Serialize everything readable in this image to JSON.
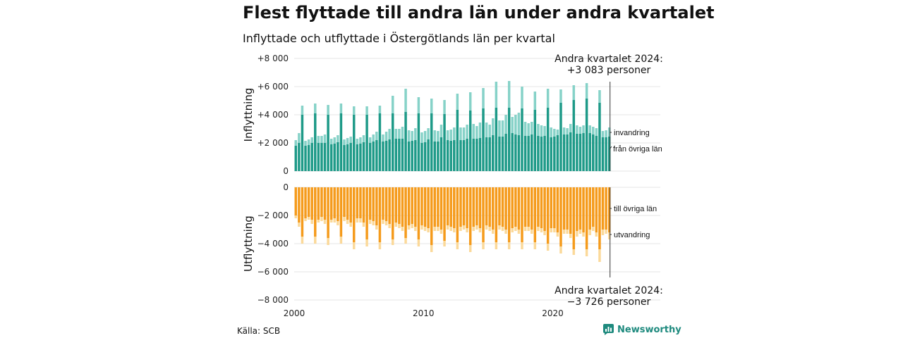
{
  "title": "Flest flyttade till andra län under andra kvartalet",
  "subtitle": "Inflyttade och utflyttade i Östergötlands län per kvartal",
  "source": "Källa: SCB",
  "brand": "Newsworthy",
  "chart_data": [
    {
      "type": "bar",
      "stacked": true,
      "ylabel": "Inflyttning",
      "ylim": [
        0,
        8000
      ],
      "yticks": [
        "0",
        "+2 000",
        "+4 000",
        "+6 000",
        "+8 000"
      ],
      "x_start": "2000 Q1",
      "x_end": "2024 Q2",
      "colors": {
        "från övriga län": "#1e9a88",
        "invandring": "#86d2c8"
      },
      "series": [
        {
          "name": "från övriga län",
          "values": [
            1800,
            2000,
            4000,
            1800,
            1850,
            2000,
            4100,
            2000,
            2000,
            2000,
            4000,
            1900,
            1950,
            2050,
            4100,
            1850,
            1900,
            2000,
            4000,
            1900,
            1950,
            2050,
            4000,
            2000,
            2100,
            2200,
            4100,
            2100,
            2150,
            2250,
            4100,
            2300,
            2300,
            2300,
            4200,
            2100,
            2150,
            2200,
            4100,
            2000,
            2050,
            2250,
            4100,
            2100,
            2100,
            2400,
            4050,
            2200,
            2150,
            2200,
            4350,
            2200,
            2200,
            2300,
            4300,
            2300,
            2300,
            2350,
            4450,
            2400,
            2400,
            2550,
            4500,
            2450,
            2450,
            2650,
            4500,
            2700,
            2600,
            2550,
            4450,
            2500,
            2500,
            2600,
            4350,
            2500,
            2450,
            2500,
            4500,
            2400,
            2450,
            2550,
            4850,
            2600,
            2600,
            2750,
            5050,
            2650,
            2650,
            2700,
            5150,
            2700,
            2600,
            2500,
            4850,
            2400,
            2400,
            2450
          ]
        },
        {
          "name": "invandring",
          "values": [
            400,
            700,
            650,
            350,
            400,
            400,
            700,
            500,
            500,
            600,
            700,
            400,
            450,
            500,
            700,
            400,
            450,
            450,
            600,
            400,
            450,
            500,
            600,
            400,
            500,
            600,
            550,
            500,
            650,
            750,
            1250,
            700,
            700,
            850,
            1650,
            800,
            700,
            850,
            1150,
            750,
            800,
            800,
            1050,
            800,
            750,
            900,
            1000,
            700,
            800,
            900,
            1150,
            900,
            900,
            1000,
            1300,
            1050,
            900,
            1100,
            1450,
            1050,
            900,
            1200,
            1850,
            1150,
            1150,
            1350,
            1900,
            1150,
            1400,
            1600,
            1550,
            1000,
            900,
            900,
            1300,
            850,
            800,
            700,
            1350,
            700,
            550,
            400,
            950,
            500,
            450,
            600,
            1050,
            600,
            500,
            550,
            1100,
            550,
            550,
            550,
            900,
            450,
            500,
            650
          ]
        }
      ],
      "annotation": "Andra kvartalet 2024:\n+3 083 personer"
    },
    {
      "type": "bar",
      "stacked": true,
      "ylabel": "Utflyttning",
      "ylim": [
        -8000,
        0
      ],
      "yticks": [
        "0",
        "−2 000",
        "−4 000",
        "−6 000",
        "−8 000"
      ],
      "xticks": [
        "2000",
        "2010",
        "2020"
      ],
      "colors": {
        "till övriga län": "#f59b1c",
        "utvandring": "#fbd99a"
      },
      "series": [
        {
          "name": "till övriga län",
          "values": [
            -2000,
            -2500,
            -3500,
            -2200,
            -2100,
            -2300,
            -3500,
            -2300,
            -2100,
            -2300,
            -3600,
            -2300,
            -2200,
            -2400,
            -3500,
            -2100,
            -2300,
            -2500,
            -3900,
            -2200,
            -2200,
            -2500,
            -3700,
            -2300,
            -2400,
            -2700,
            -3900,
            -2300,
            -2400,
            -2600,
            -3700,
            -2500,
            -2600,
            -2800,
            -3600,
            -2700,
            -2600,
            -2800,
            -3700,
            -2700,
            -2800,
            -2900,
            -4100,
            -2800,
            -2800,
            -3000,
            -3800,
            -2700,
            -2800,
            -2900,
            -3900,
            -2800,
            -2700,
            -2900,
            -4100,
            -2800,
            -2700,
            -2900,
            -3900,
            -2700,
            -2800,
            -3000,
            -3900,
            -2700,
            -2800,
            -3000,
            -3900,
            -2900,
            -2800,
            -3000,
            -3900,
            -2800,
            -2800,
            -3000,
            -3900,
            -2800,
            -2900,
            -3100,
            -4000,
            -2900,
            -2900,
            -3200,
            -4200,
            -3000,
            -3000,
            -3300,
            -4400,
            -3100,
            -3000,
            -3200,
            -4400,
            -3000,
            -2800,
            -3200,
            -4400,
            -3000,
            -3000,
            -3200
          ]
        },
        {
          "name": "utvandring",
          "values": [
            -200,
            -300,
            -500,
            -200,
            -200,
            -300,
            -500,
            -200,
            -300,
            -300,
            -500,
            -200,
            -300,
            -300,
            -500,
            -300,
            -300,
            -300,
            -500,
            -300,
            -300,
            -300,
            -500,
            -300,
            -300,
            -300,
            -500,
            -300,
            -300,
            -300,
            -400,
            -300,
            -300,
            -300,
            -400,
            -300,
            -300,
            -300,
            -500,
            -300,
            -300,
            -300,
            -500,
            -300,
            -300,
            -300,
            -400,
            -300,
            -300,
            -300,
            -500,
            -300,
            -300,
            -300,
            -500,
            -300,
            -300,
            -300,
            -500,
            -300,
            -300,
            -300,
            -500,
            -300,
            -300,
            -300,
            -500,
            -300,
            -300,
            -300,
            -500,
            -300,
            -300,
            -300,
            -500,
            -300,
            -300,
            -300,
            -500,
            -300,
            -300,
            -300,
            -500,
            -300,
            -300,
            -300,
            -400,
            -400,
            -300,
            -300,
            -500,
            -400,
            -300,
            -300,
            -900,
            -400,
            -300,
            -500
          ]
        }
      ],
      "annotation": "Andra kvartalet 2024:\n−3 726 personer"
    }
  ]
}
